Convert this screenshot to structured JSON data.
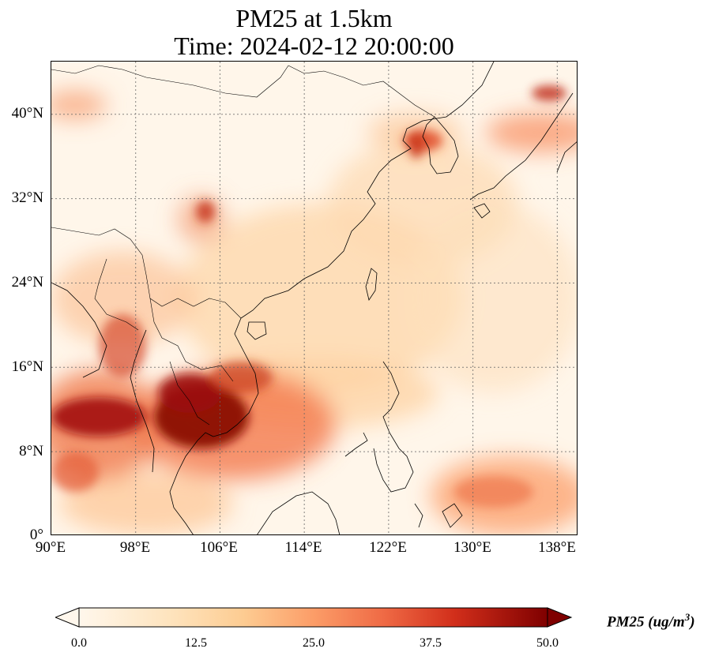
{
  "title": {
    "line1": "PM25 at 1.5km",
    "line2": "Time: 2024-02-12 20:00:00"
  },
  "map": {
    "lat_labels": [
      "40°N",
      "32°N",
      "24°N",
      "16°N",
      "8°N",
      "0°"
    ],
    "lon_labels": [
      "90°E",
      "98°E",
      "106°E",
      "114°E",
      "122°E",
      "130°E",
      "138°E"
    ],
    "lon_range": [
      90,
      140
    ],
    "lat_range": [
      0,
      45
    ],
    "gridline_lons": [
      98,
      106,
      114,
      122,
      130,
      138
    ],
    "gridline_lats": [
      8,
      16,
      24,
      32,
      40
    ],
    "colormap": "OrRd",
    "colors": {
      "low": "#fff7ec",
      "mid": "#fc8d59",
      "high": "#7f0000"
    }
  },
  "colorbar": {
    "ticks": [
      "0.0",
      "12.5",
      "25.0",
      "37.5",
      "50.0"
    ],
    "label": "PM25 (ug/m",
    "label_exponent": "3",
    "label_close": ")",
    "range": [
      0,
      50
    ],
    "extend": "both"
  }
}
